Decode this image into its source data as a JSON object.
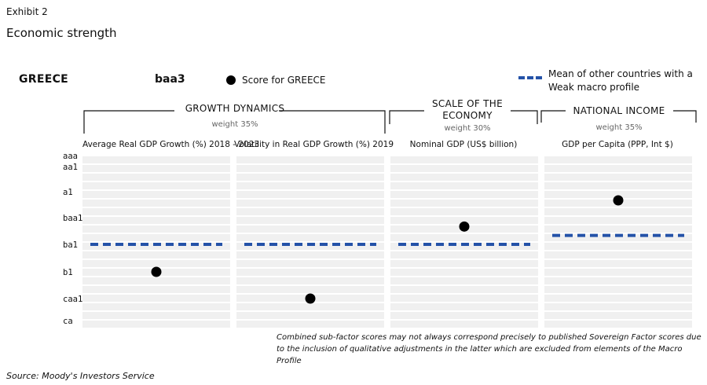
{
  "header": {
    "exhibit": "Exhibit 2",
    "title": "Economic strength"
  },
  "country": "GREECE",
  "rating": "baa3",
  "legend": {
    "score": "Score for GREECE",
    "mean": "Mean of other countries with a Weak macro profile",
    "score_color": "#000000",
    "mean_color": "#2452a8"
  },
  "groups": [
    {
      "title": "GROWTH DYNAMICS",
      "weight": "weight 35%"
    },
    {
      "title": "SCALE OF THE ECONOMY",
      "weight": "weight 30%"
    },
    {
      "title": "NATIONAL INCOME",
      "weight": "weight 35%"
    }
  ],
  "chart_data": {
    "type": "scatter",
    "y_scale": [
      "aaa",
      "aa1",
      "a1",
      "baa1",
      "ba1",
      "b1",
      "caa1",
      "ca"
    ],
    "columns": [
      {
        "title": "Average Real GDP Growth (%) 2018 - 2023",
        "score": "b1",
        "mean": "ba1"
      },
      {
        "title": "Volatility in Real GDP Growth (%) 2019",
        "score": "caa1",
        "mean": "ba1"
      },
      {
        "title": "Nominal GDP (US$ billion)",
        "score": "baa2",
        "mean": "ba1"
      },
      {
        "title": "GDP per Capita (PPP, Int $)",
        "score": "a2",
        "mean": "baa3"
      }
    ]
  },
  "footnote": "Combined sub-factor scores may not always correspond precisely to published Sovereign Factor scores due to the inclusion of qualitative adjustments in the latter which are excluded from elements of the Macro Profile",
  "source": "Source: Moody's Investors Service"
}
